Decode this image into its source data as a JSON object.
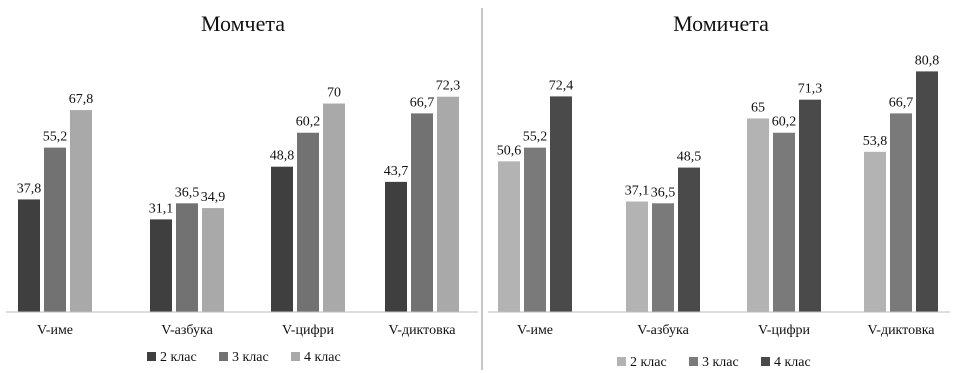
{
  "chart_data": [
    {
      "type": "bar",
      "title": "Момчета",
      "categories": [
        "V-име",
        "V-азбука",
        "V-цифри",
        "V-диктовка"
      ],
      "series": [
        {
          "name": "2 клас",
          "values": [
            37.8,
            31.1,
            48.8,
            43.7
          ],
          "labels": [
            "37,8",
            "31,1",
            "48,8",
            "43,7"
          ],
          "color": "#3f3f3f"
        },
        {
          "name": "3 клас",
          "values": [
            55.2,
            36.5,
            60.2,
            66.7
          ],
          "labels": [
            "55,2",
            "36,5",
            "60,2",
            "66,7"
          ],
          "color": "#727272"
        },
        {
          "name": "4 клас",
          "values": [
            67.8,
            34.9,
            70,
            72.3
          ],
          "labels": [
            "67,8",
            "34,9",
            "70",
            "72,3"
          ],
          "color": "#a9a9a9"
        }
      ],
      "ylim": [
        0,
        90
      ],
      "grid": false,
      "legend_position": "bottom"
    },
    {
      "type": "bar",
      "title": "Момичета",
      "categories": [
        "V-име",
        "V-азбука",
        "V-цифри",
        "V-диктовка"
      ],
      "series": [
        {
          "name": "2 клас",
          "values": [
            50.6,
            37.1,
            65,
            53.8
          ],
          "labels": [
            "50,6",
            "37,1",
            "65",
            "53,8"
          ],
          "color": "#b3b3b3"
        },
        {
          "name": "3 клас",
          "values": [
            55.2,
            36.5,
            60.2,
            66.7
          ],
          "labels": [
            "55,2",
            "36,5",
            "60,2",
            "66,7"
          ],
          "color": "#7a7a7a"
        },
        {
          "name": "4 клас",
          "values": [
            72.4,
            48.5,
            71.3,
            80.8
          ],
          "labels": [
            "72,4",
            "48,5",
            "71,3",
            "80,8"
          ],
          "color": "#4a4a4a"
        }
      ],
      "ylim": [
        0,
        90
      ],
      "grid": false,
      "legend_position": "bottom"
    }
  ]
}
